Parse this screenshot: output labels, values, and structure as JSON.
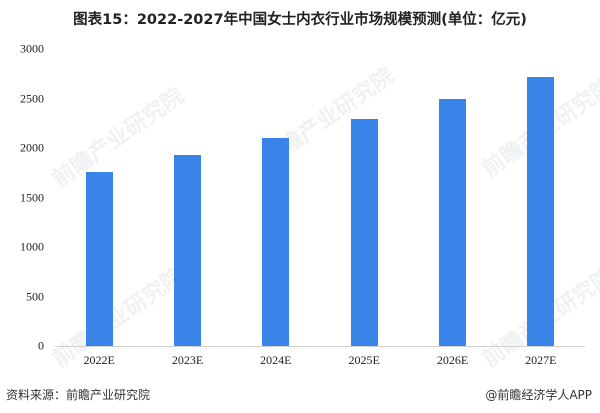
{
  "title": "图表15：2022-2027年中国女士内衣行业市场规模预测(单位：亿元)",
  "source": "资料来源：前瞻产业研究院",
  "credit": "@前瞻经济学人APP",
  "watermark": "前瞻产业研究院",
  "bar_color": "#3884E8",
  "chart_data": {
    "type": "bar",
    "title": "图表15：2022-2027年中国女士内衣行业市场规模预测(单位：亿元)",
    "xlabel": "",
    "ylabel": "亿元",
    "categories": [
      "2022E",
      "2023E",
      "2024E",
      "2025E",
      "2026E",
      "2027E"
    ],
    "values": [
      1760,
      1930,
      2100,
      2290,
      2500,
      2720
    ],
    "ylim": [
      0,
      3000
    ],
    "yticks": [
      0,
      500,
      1000,
      1500,
      2000,
      2500,
      3000
    ],
    "grid": false,
    "legend": null
  }
}
